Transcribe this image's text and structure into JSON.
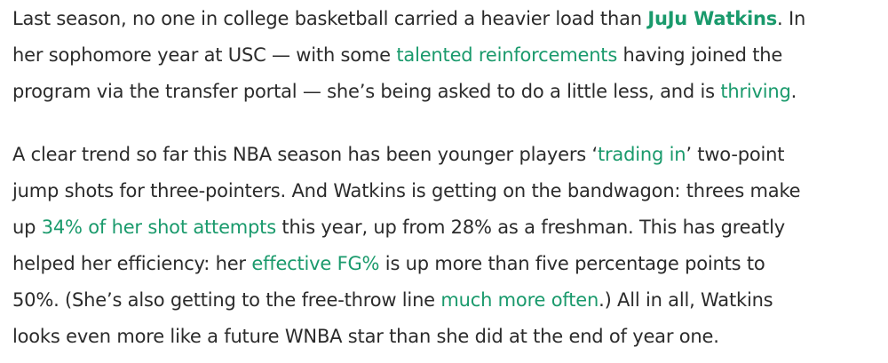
{
  "link_color": "#1a9a6c",
  "paragraphs": [
    {
      "lines": [
        [
          {
            "t": "Last season, no one in college basketball carried a heavier load than "
          },
          {
            "t": "JuJu Watkins",
            "link": true,
            "bold": true
          },
          {
            "t": ". In"
          }
        ],
        [
          {
            "t": "her sophomore year at USC — with some "
          },
          {
            "t": "talented reinforcements",
            "link": true
          },
          {
            "t": " having joined the"
          }
        ],
        [
          {
            "t": "program via the transfer portal — she’s being asked to do a little less, and is "
          },
          {
            "t": "thriving",
            "link": true
          },
          {
            "t": "."
          }
        ]
      ]
    },
    {
      "lines": [
        [
          {
            "t": "A clear trend so far this NBA season has been younger players ‘"
          },
          {
            "t": "trading in",
            "link": true
          },
          {
            "t": "’ two-point"
          }
        ],
        [
          {
            "t": "jump shots for three-pointers. And Watkins is getting on the bandwagon: threes make"
          }
        ],
        [
          {
            "t": "up "
          },
          {
            "t": "34% of her shot attempts",
            "link": true
          },
          {
            "t": " this year, up from 28% as a freshman. This has greatly"
          }
        ],
        [
          {
            "t": "helped her efficiency: her "
          },
          {
            "t": "effective FG%",
            "link": true
          },
          {
            "t": " is up more than five percentage points to"
          }
        ],
        [
          {
            "t": "50%. (She’s also getting to the free-throw line "
          },
          {
            "t": "much more often",
            "link": true
          },
          {
            "t": ".) All in all, Watkins"
          }
        ],
        [
          {
            "t": "looks even more like a future WNBA star than she did at the end of year one."
          }
        ]
      ]
    }
  ]
}
